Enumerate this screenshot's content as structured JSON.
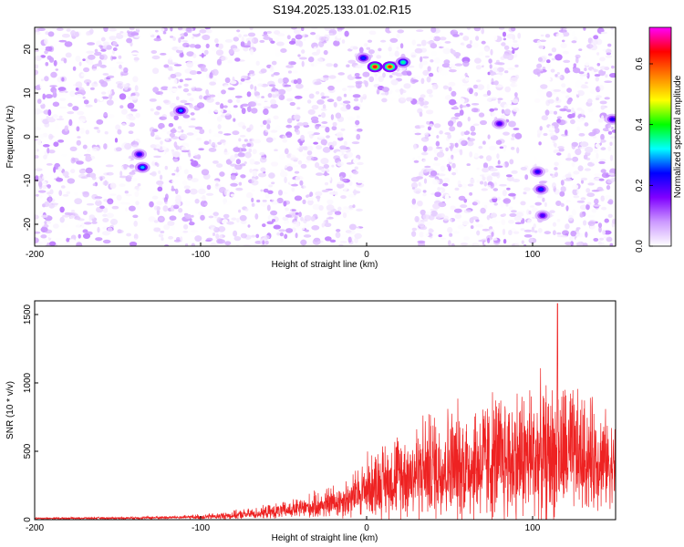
{
  "title": "S194.2025.133.01.02.R15",
  "chart_data": [
    {
      "type": "heatmap",
      "xlabel": "Height of straight line (km)",
      "ylabel": "Frequency (Hz)",
      "xlim": [
        -200,
        150
      ],
      "ylim": [
        -25,
        25
      ],
      "xticks": [
        -200,
        -100,
        0,
        100
      ],
      "yticks": [
        -20,
        -10,
        0,
        10,
        20
      ],
      "colorbar": {
        "label": "Normalized spectral amplitude",
        "range": [
          0,
          0.72
        ],
        "ticks": [
          "0.0",
          "0.2",
          "0.4",
          "0.6"
        ],
        "colormap": [
          "#ffffff",
          "#cc99ff",
          "#8000ff",
          "#0000ff",
          "#00ffff",
          "#00ff00",
          "#ffff00",
          "#ff8000",
          "#ff0000",
          "#ff00ff"
        ]
      },
      "blank_regions": [
        {
          "x": [
            -3,
            28
          ],
          "y": [
            -25,
            8
          ]
        },
        {
          "x": [
            92,
            102
          ],
          "y": [
            -5,
            25
          ]
        },
        {
          "x": [
            -137,
            -130
          ],
          "y": [
            -25,
            25
          ]
        }
      ],
      "hotspots": [
        {
          "x": 5,
          "y": 16,
          "value": 0.65
        },
        {
          "x": 14,
          "y": 16,
          "value": 0.62
        },
        {
          "x": 22,
          "y": 17,
          "value": 0.35
        },
        {
          "x": -2,
          "y": 18,
          "value": 0.25
        },
        {
          "x": -135,
          "y": -7,
          "value": 0.3
        },
        {
          "x": -137,
          "y": -4,
          "value": 0.22
        },
        {
          "x": -112,
          "y": 6,
          "value": 0.28
        },
        {
          "x": 105,
          "y": -12,
          "value": 0.25
        },
        {
          "x": 103,
          "y": -8,
          "value": 0.22
        },
        {
          "x": 106,
          "y": -18,
          "value": 0.2
        },
        {
          "x": 148,
          "y": 4,
          "value": 0.22
        },
        {
          "x": 80,
          "y": 3,
          "value": 0.2
        }
      ]
    },
    {
      "type": "line",
      "xlabel": "Height of straight line (km)",
      "ylabel": "SNR (10 * v/v)",
      "xlim": [
        -200,
        150
      ],
      "ylim": [
        0,
        1600
      ],
      "xticks": [
        -200,
        -100,
        0,
        100
      ],
      "yticks": [
        0,
        500,
        1000,
        1500
      ],
      "color": "#ee2222",
      "envelope": {
        "x": [
          -200,
          -150,
          -110,
          -90,
          -70,
          -50,
          -30,
          -10,
          0,
          20,
          40,
          60,
          80,
          100,
          120,
          140,
          150
        ],
        "base": [
          8,
          10,
          15,
          20,
          35,
          55,
          85,
          130,
          200,
          270,
          320,
          330,
          360,
          380,
          400,
          380,
          350
        ],
        "amp": [
          12,
          15,
          25,
          45,
          70,
          110,
          180,
          280,
          420,
          580,
          750,
          800,
          900,
          950,
          900,
          700,
          520
        ]
      },
      "peak": {
        "x": 115,
        "y": 1580
      }
    }
  ]
}
